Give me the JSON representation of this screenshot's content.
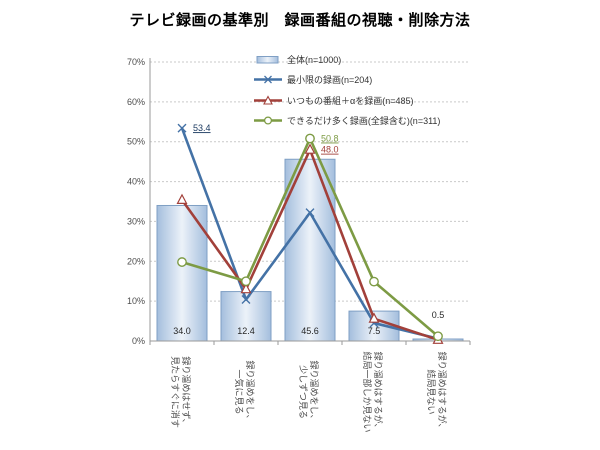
{
  "title": "テレビ録画の基準別　録画番組の視聴・削除方法",
  "colors": {
    "bar_edge": "#a4bedd",
    "bar_center": "#ecf2f9",
    "bar_border": "#7f9fc4",
    "line_blue": "#4472a6",
    "line_red": "#a2403a",
    "line_green": "#7d9b44",
    "label_navy": "#17365d",
    "axis_text": "#4d4d4d",
    "grid": "#c9c9c9",
    "axis_line": "#9a9a9a",
    "bar_label_text": "#262626"
  },
  "chart_data": {
    "type": "bar",
    "subtype": "bar+line combo",
    "title": "テレビ録画の基準別　録画番組の視聴・削除方法",
    "xlabel": "",
    "ylabel": "",
    "ylim": [
      0,
      70
    ],
    "ytick_step": 10,
    "ytick_suffix": "%",
    "grid": true,
    "legend_position": "top-right-inside",
    "categories": [
      [
        "録り溜めはせず、",
        "見たらすぐに消す"
      ],
      [
        "録り溜めをし、",
        "一気に見る"
      ],
      [
        "録り溜めをし、",
        "少しずつ見る"
      ],
      [
        "録り溜めはするが、",
        "結局一部しか見ない"
      ],
      [
        "録り溜めはするが、",
        "結局見ない"
      ]
    ],
    "series": [
      {
        "name": "全体(n=1000)",
        "kind": "bar",
        "values": [
          34.0,
          12.4,
          45.6,
          7.5,
          0.5
        ],
        "value_labels": [
          "34.0",
          "12.4",
          "45.6",
          "7.5",
          "0.5"
        ]
      },
      {
        "name": "最小限の録画(n=204)",
        "kind": "line",
        "marker": "x",
        "color_key": "line_blue",
        "values": [
          53.4,
          10.4,
          32.2,
          4.5,
          0.6
        ],
        "point_labels": {
          "0": "53.4"
        },
        "point_label_color_key": "label_navy"
      },
      {
        "name": "いつもの番組＋αを録画(n=485)",
        "kind": "line",
        "marker": "triangle",
        "color_key": "line_red",
        "values": [
          35.4,
          13.0,
          48.0,
          5.6,
          0.3
        ],
        "point_labels": {
          "2": "48.0"
        },
        "point_label_color_key": "line_red"
      },
      {
        "name": "できるだけ多く録画(全録含む)(n=311)",
        "kind": "line",
        "marker": "circle",
        "color_key": "line_green",
        "values": [
          19.8,
          15.0,
          50.8,
          14.9,
          1.2
        ],
        "point_labels": {
          "2": "50.8"
        },
        "point_label_color_key": "line_green"
      }
    ]
  }
}
